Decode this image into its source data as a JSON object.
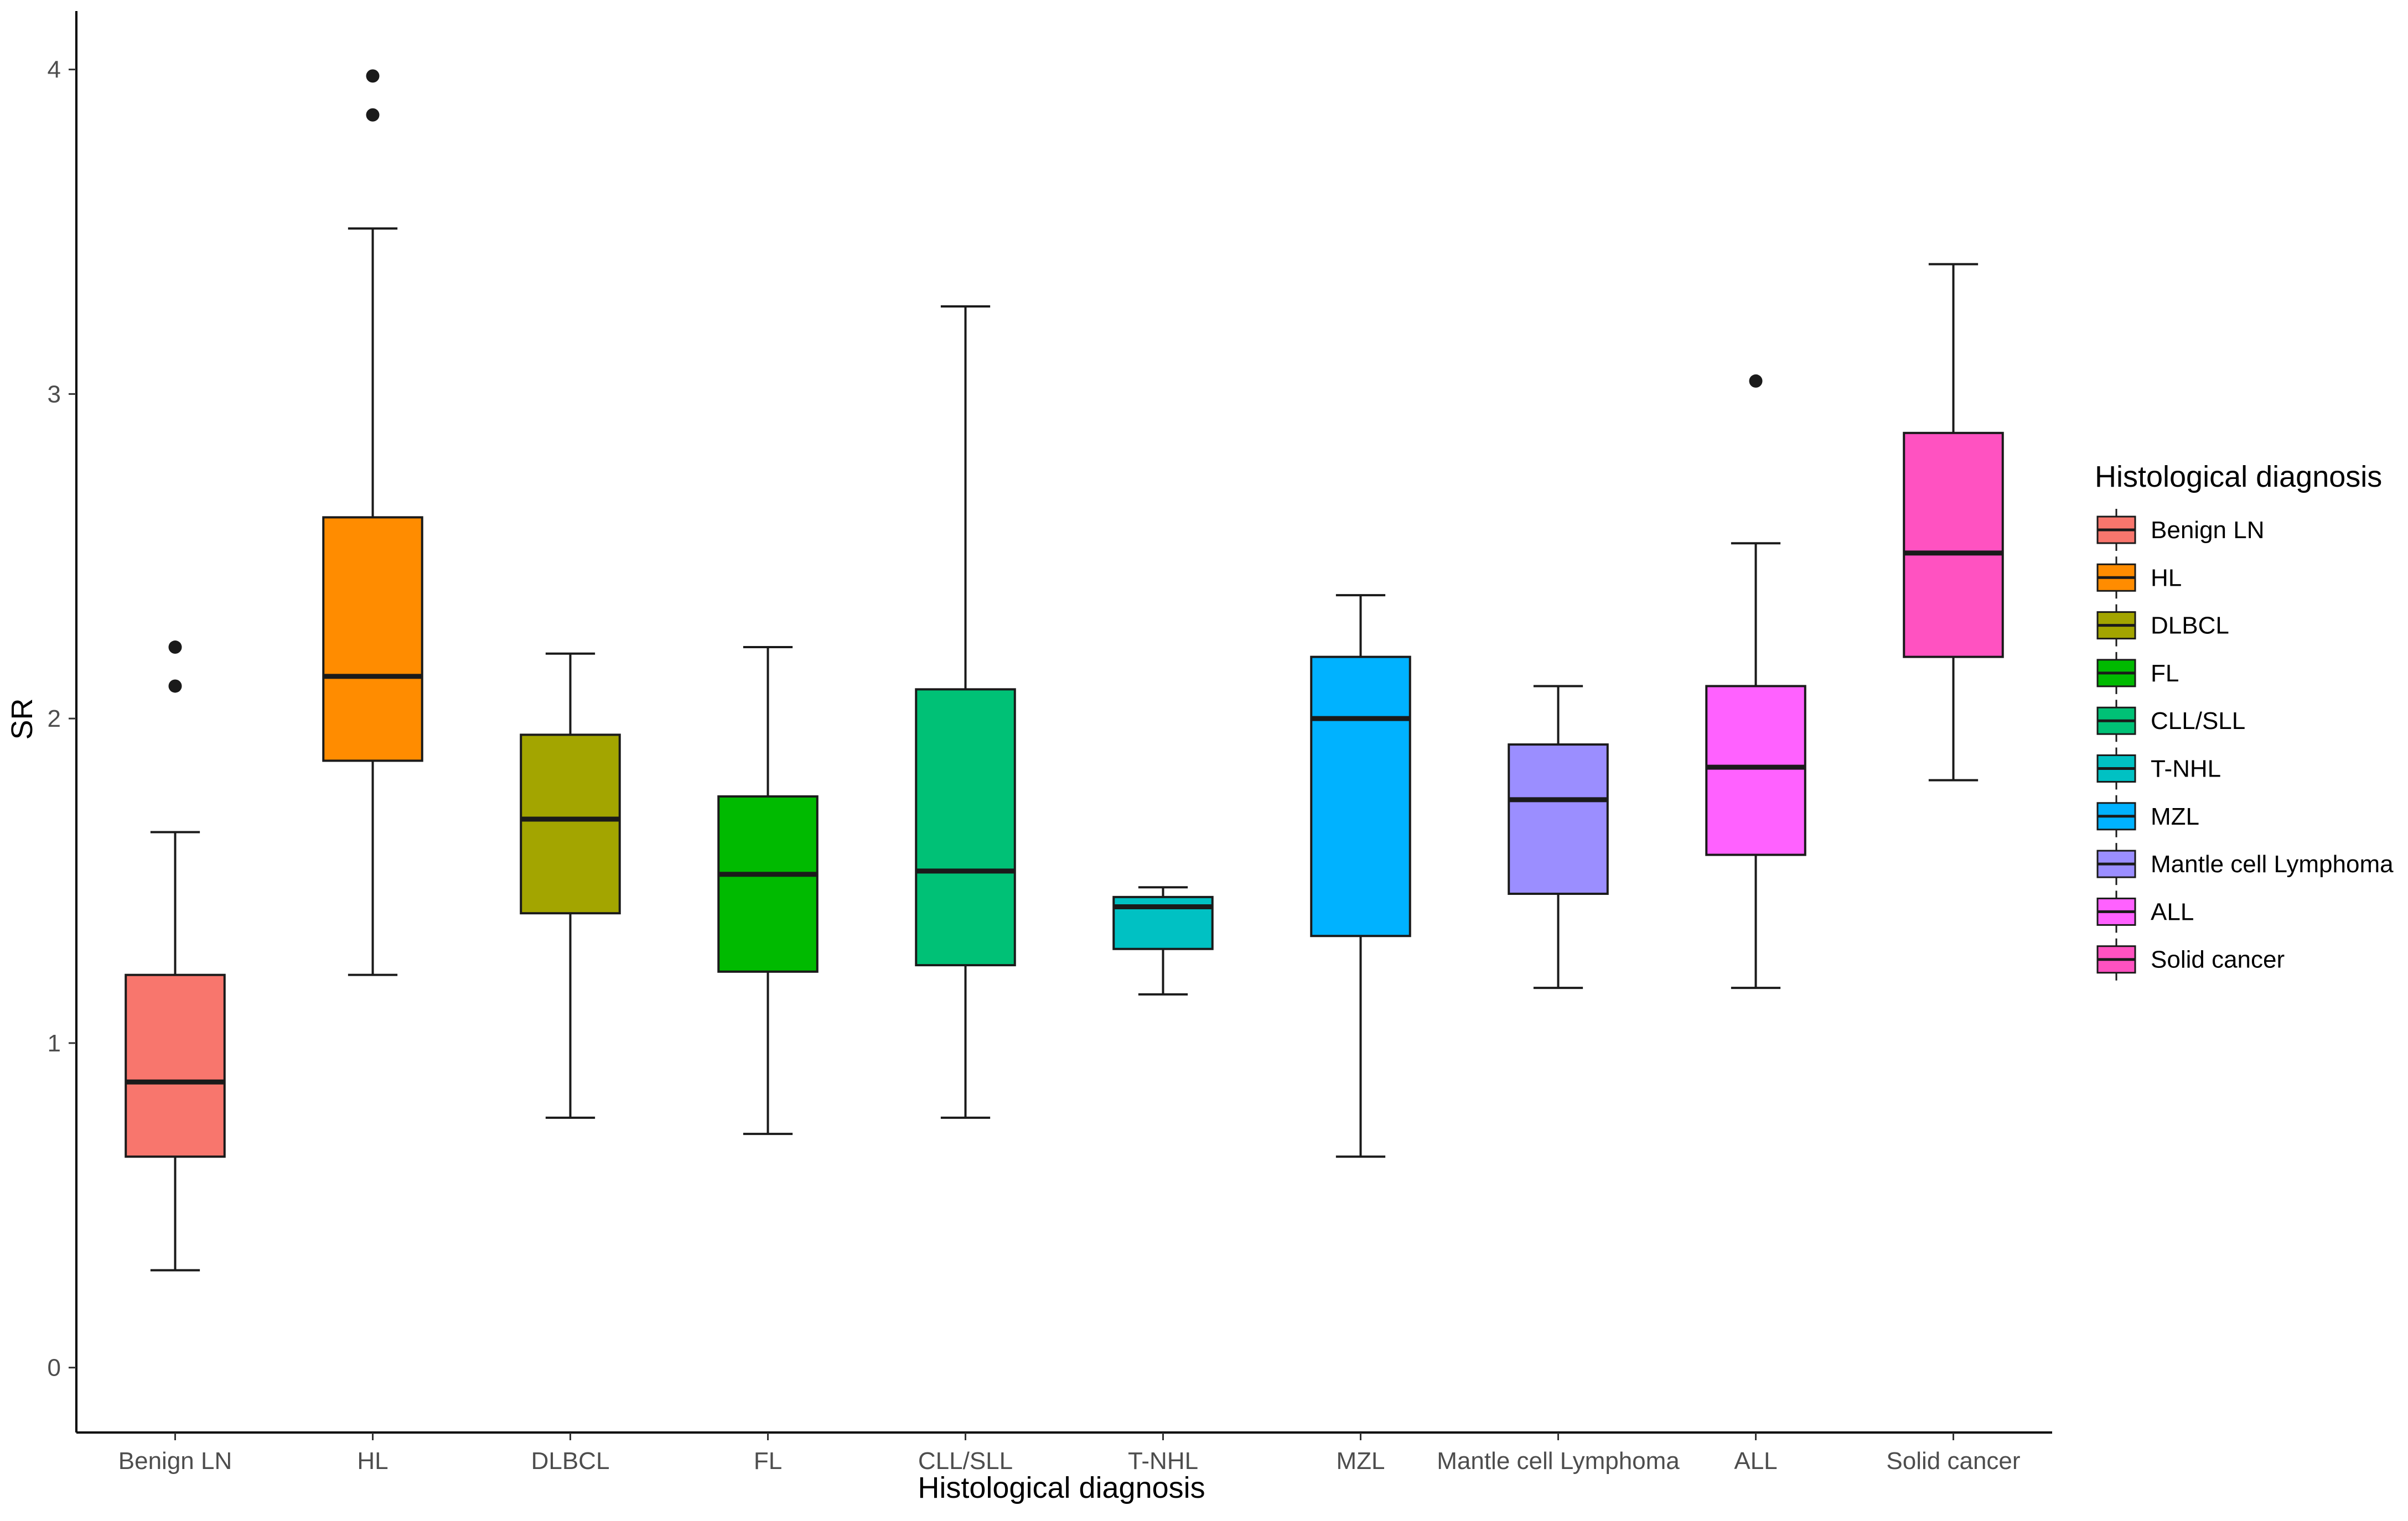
{
  "chart_data": {
    "type": "boxplot",
    "title": "",
    "xlabel": "Histological diagnosis",
    "ylabel": "SR",
    "ylim": [
      -0.2,
      4.18
    ],
    "yticks": [
      0,
      1,
      2,
      3,
      4
    ],
    "ytick_labels": [
      "0",
      "1",
      "2",
      "3",
      "4"
    ],
    "categories": [
      "Benign LN",
      "HL",
      "DLBCL",
      "FL",
      "CLL/SLL",
      "T-NHL",
      "MZL",
      "Mantle cell Lymphoma",
      "ALL",
      "Solid cancer"
    ],
    "series": [
      {
        "name": "Benign LN",
        "color": "#F8766D",
        "whisker_low": 0.3,
        "q1": 0.65,
        "median": 0.88,
        "q3": 1.21,
        "whisker_high": 1.65,
        "outliers": [
          2.1,
          2.22
        ]
      },
      {
        "name": "HL",
        "color": "#FF8C00",
        "whisker_low": 1.21,
        "q1": 1.87,
        "median": 2.13,
        "q3": 2.62,
        "whisker_high": 3.51,
        "outliers": [
          3.86,
          3.98
        ]
      },
      {
        "name": "DLBCL",
        "color": "#A3A500",
        "whisker_low": 0.77,
        "q1": 1.4,
        "median": 1.69,
        "q3": 1.95,
        "whisker_high": 2.2,
        "outliers": []
      },
      {
        "name": "FL",
        "color": "#00BA00",
        "whisker_low": 0.72,
        "q1": 1.22,
        "median": 1.52,
        "q3": 1.76,
        "whisker_high": 2.22,
        "outliers": []
      },
      {
        "name": "CLL/SLL",
        "color": "#00C176",
        "whisker_low": 0.77,
        "q1": 1.24,
        "median": 1.53,
        "q3": 2.09,
        "whisker_high": 3.27,
        "outliers": []
      },
      {
        "name": "T-NHL",
        "color": "#00C1C3",
        "whisker_low": 1.15,
        "q1": 1.29,
        "median": 1.42,
        "q3": 1.45,
        "whisker_high": 1.48,
        "outliers": []
      },
      {
        "name": "MZL",
        "color": "#00B2FF",
        "whisker_low": 0.65,
        "q1": 1.33,
        "median": 2.0,
        "q3": 2.19,
        "whisker_high": 2.38,
        "outliers": []
      },
      {
        "name": "Mantle cell Lymphoma",
        "color": "#9B8EFF",
        "whisker_low": 1.17,
        "q1": 1.46,
        "median": 1.75,
        "q3": 1.92,
        "whisker_high": 2.1,
        "outliers": []
      },
      {
        "name": "ALL",
        "color": "#FF61FF",
        "whisker_low": 1.17,
        "q1": 1.58,
        "median": 1.85,
        "q3": 2.1,
        "whisker_high": 2.54,
        "outliers": [
          3.04
        ]
      },
      {
        "name": "Solid cancer",
        "color": "#FF52C1",
        "whisker_low": 1.81,
        "q1": 2.19,
        "median": 2.51,
        "q3": 2.88,
        "whisker_high": 3.4,
        "outliers": []
      }
    ],
    "legend": {
      "title": "Histological diagnosis",
      "position": "right"
    },
    "grid": false
  }
}
